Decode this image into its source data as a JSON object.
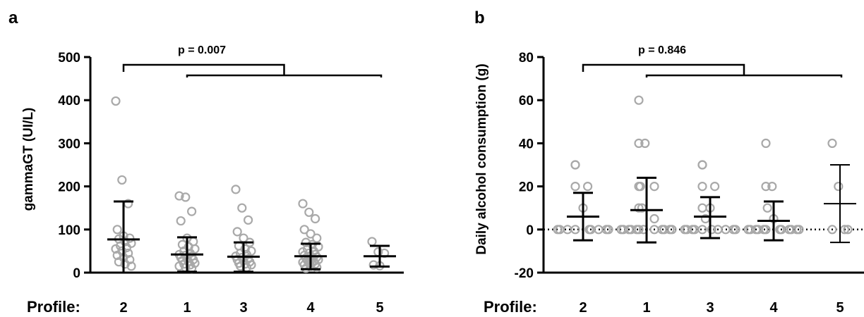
{
  "x_axis_label": "Profile:",
  "chart_data": [
    {
      "panel_label": "a",
      "type": "scatter",
      "categories": [
        "2",
        "1",
        "3",
        "4",
        "5"
      ],
      "ylabel": "gammaGT (UI/L)",
      "ylim": [
        0,
        500
      ],
      "yticks": [
        0,
        100,
        200,
        300,
        400,
        500
      ],
      "zero_line_dotted": false,
      "annotation": "p = 0.007",
      "comparison": {
        "left_group": [
          "2"
        ],
        "right_group": [
          "1",
          "3",
          "4",
          "5"
        ]
      },
      "point_color": "#a9a9a9",
      "groups": [
        {
          "category": "2",
          "mean": 77,
          "sd_low": 0,
          "sd_high": 165,
          "points": [
            398,
            215,
            160,
            100,
            85,
            80,
            78,
            72,
            68,
            62,
            58,
            55,
            50,
            45,
            40,
            35,
            30,
            25,
            20,
            15
          ]
        },
        {
          "category": "1",
          "mean": 42,
          "sd_low": 2,
          "sd_high": 82,
          "points": [
            178,
            175,
            142,
            120,
            80,
            72,
            65,
            60,
            55,
            50,
            45,
            42,
            40,
            38,
            35,
            32,
            30,
            28,
            25,
            22,
            20,
            18,
            15,
            12,
            10
          ]
        },
        {
          "category": "3",
          "mean": 37,
          "sd_low": 2,
          "sd_high": 70,
          "points": [
            193,
            150,
            122,
            95,
            80,
            70,
            62,
            55,
            50,
            45,
            42,
            38,
            35,
            32,
            30,
            28,
            25,
            22,
            20,
            18,
            15,
            12
          ]
        },
        {
          "category": "4",
          "mean": 38,
          "sd_low": 8,
          "sd_high": 67,
          "points": [
            160,
            140,
            125,
            100,
            90,
            80,
            70,
            65,
            60,
            55,
            50,
            48,
            45,
            42,
            40,
            38,
            36,
            34,
            32,
            30,
            28,
            26,
            24,
            22,
            20,
            18,
            15,
            12,
            10
          ]
        },
        {
          "category": "5",
          "mean": 38,
          "sd_low": 14,
          "sd_high": 62,
          "points": [
            72,
            48,
            45,
            18,
            16
          ]
        }
      ]
    },
    {
      "panel_label": "b",
      "type": "scatter",
      "categories": [
        "2",
        "1",
        "3",
        "4",
        "5"
      ],
      "ylabel": "Daily alcohol consumption (g)",
      "ylim": [
        -20,
        80
      ],
      "yticks": [
        -20,
        0,
        20,
        40,
        60,
        80
      ],
      "zero_line_dotted": true,
      "annotation": "p = 0.846",
      "comparison": {
        "left_group": [
          "2"
        ],
        "right_group": [
          "1",
          "3",
          "4",
          "5"
        ]
      },
      "point_color": "#a9a9a9",
      "groups": [
        {
          "category": "2",
          "mean": 6,
          "sd_low": -5,
          "sd_high": 17,
          "points": [
            30,
            30,
            20,
            20,
            10,
            0,
            0,
            0,
            0,
            0,
            0,
            0,
            0,
            0
          ]
        },
        {
          "category": "1",
          "mean": 9,
          "sd_low": -6,
          "sd_high": 24,
          "points": [
            60,
            40,
            40,
            20,
            20,
            20,
            10,
            10,
            5,
            0,
            0,
            0,
            0,
            0,
            0,
            0,
            0,
            0,
            0,
            0,
            0
          ]
        },
        {
          "category": "3",
          "mean": 6,
          "sd_low": -4,
          "sd_high": 15,
          "points": [
            30,
            30,
            20,
            20,
            10,
            10,
            5,
            0,
            0,
            0,
            0,
            0,
            0,
            0,
            0,
            0,
            0
          ]
        },
        {
          "category": "4",
          "mean": 4,
          "sd_low": -5,
          "sd_high": 13,
          "points": [
            40,
            20,
            20,
            10,
            5,
            0,
            0,
            0,
            0,
            0,
            0,
            0,
            0,
            0,
            0,
            0,
            0
          ]
        },
        {
          "category": "5",
          "mean": 12,
          "sd_low": -6,
          "sd_high": 30,
          "points": [
            40,
            20,
            0,
            0,
            0
          ]
        }
      ]
    }
  ]
}
